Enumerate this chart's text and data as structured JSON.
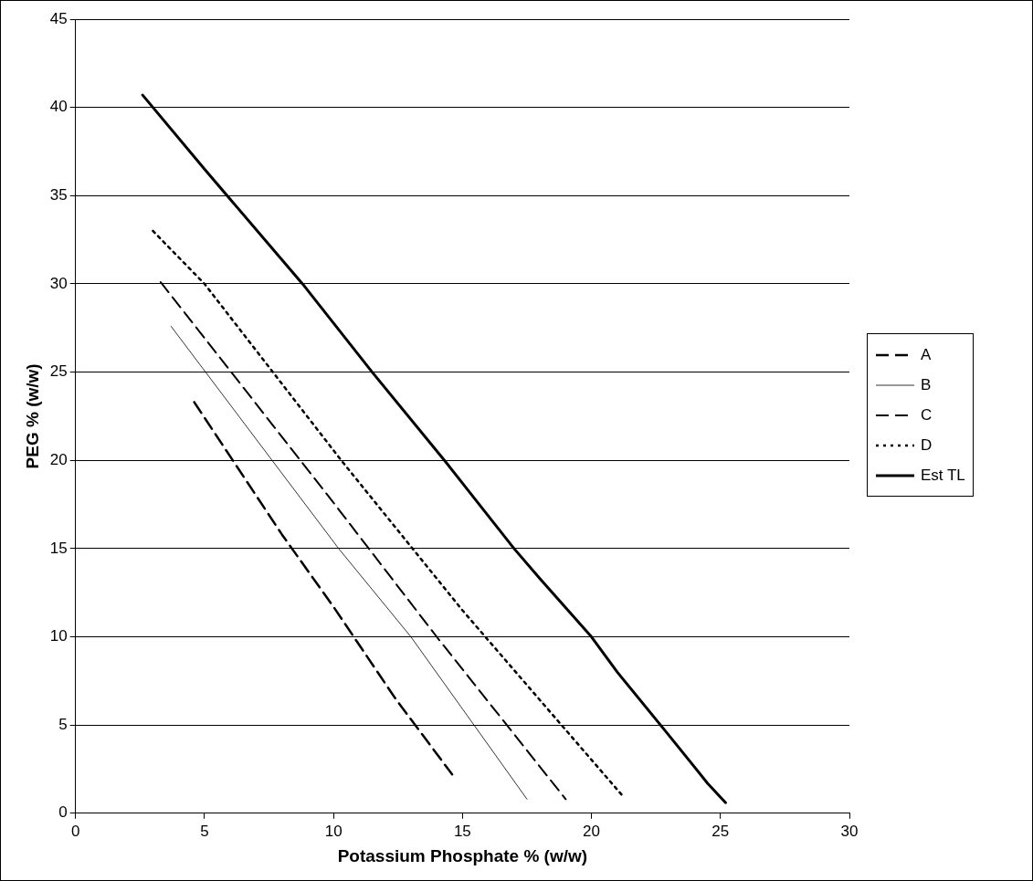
{
  "chart_data": {
    "type": "line",
    "xlabel": "Potassium Phosphate % (w/w)",
    "ylabel": "PEG % (w/w)",
    "xlim": [
      0,
      30
    ],
    "xticks": [
      0,
      5,
      10,
      15,
      20,
      25,
      30
    ],
    "ylim": [
      0,
      45
    ],
    "yticks": [
      0,
      5,
      10,
      15,
      20,
      25,
      30,
      35,
      40,
      45
    ],
    "grid": "y",
    "legend": "right",
    "marker": "none",
    "series": [
      {
        "name": "A",
        "color": "#000000",
        "line_style": "dashed",
        "x": [
          4.6,
          8,
          10,
          12.4,
          14.6
        ],
        "values": [
          23.3,
          15.8,
          11.7,
          6.5,
          2.2
        ]
      },
      {
        "name": "B",
        "color": "#000000",
        "line_style": "solid",
        "x": [
          3.7,
          7,
          10.2,
          13,
          17.5
        ],
        "values": [
          27.6,
          21.2,
          15,
          10,
          0.8
        ]
      },
      {
        "name": "C",
        "color": "#000000",
        "line_style": "dashed",
        "x": [
          3.3,
          7,
          10,
          14,
          19
        ],
        "values": [
          30.1,
          23.2,
          17.6,
          10,
          0.8
        ]
      },
      {
        "name": "D",
        "color": "#000000",
        "line_style": "dotted",
        "x": [
          3,
          5,
          10.3,
          15,
          21.2
        ],
        "values": [
          33,
          30,
          20,
          11.5,
          1
        ]
      },
      {
        "name": "Est TL",
        "color": "#000000",
        "line_style": "solid",
        "x": [
          2.6,
          5,
          8.8,
          11.5,
          14.3,
          17,
          18,
          20,
          21,
          22.9,
          24.5,
          25.2
        ],
        "values": [
          40.7,
          36.5,
          30,
          25,
          20,
          15,
          13.3,
          10,
          8,
          4.6,
          1.7,
          0.6
        ]
      }
    ]
  }
}
